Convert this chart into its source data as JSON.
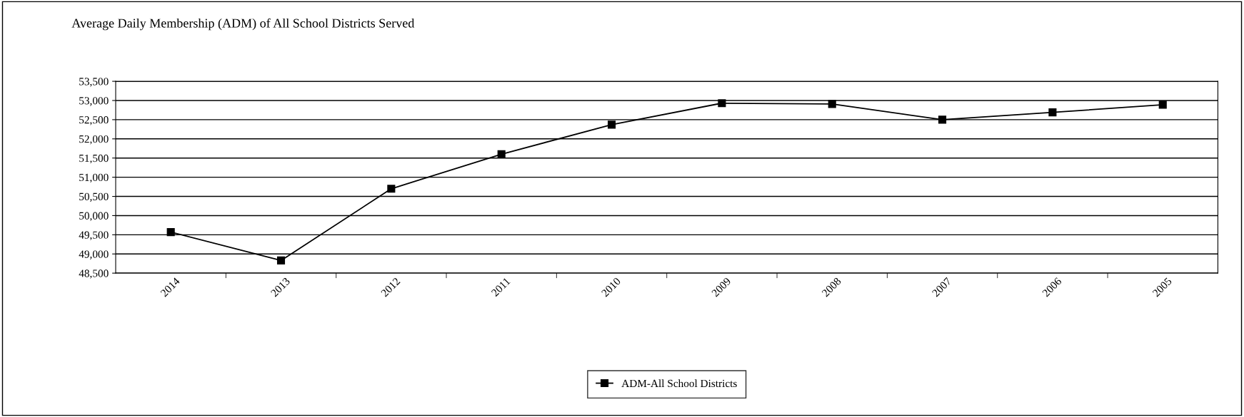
{
  "chart_data": {
    "type": "line",
    "title": "Average Daily Membership (ADM) of All School Districts Served",
    "categories": [
      "2014",
      "2013",
      "2012",
      "2011",
      "2010",
      "2009",
      "2008",
      "2007",
      "2006",
      "2005"
    ],
    "series": [
      {
        "name": "ADM-All School Districts",
        "color": "#000000",
        "values": [
          49570,
          48830,
          50700,
          51600,
          52370,
          52930,
          52910,
          52500,
          52690,
          52890
        ]
      }
    ],
    "ylim": [
      48500,
      53500
    ],
    "yticks": [
      {
        "value": 48500,
        "label": "48,500"
      },
      {
        "value": 49000,
        "label": "49,000"
      },
      {
        "value": 49500,
        "label": "49,500"
      },
      {
        "value": 50000,
        "label": "50,000"
      },
      {
        "value": 50500,
        "label": "50,500"
      },
      {
        "value": 51000,
        "label": "51,000"
      },
      {
        "value": 51500,
        "label": "51,500"
      },
      {
        "value": 52000,
        "label": "52,000"
      },
      {
        "value": 52500,
        "label": "52,500"
      },
      {
        "value": 53000,
        "label": "53,000"
      },
      {
        "value": 53500,
        "label": "53,500"
      }
    ],
    "grid": "y",
    "legend": "bottom",
    "marker": "square",
    "line_style": "solid"
  }
}
